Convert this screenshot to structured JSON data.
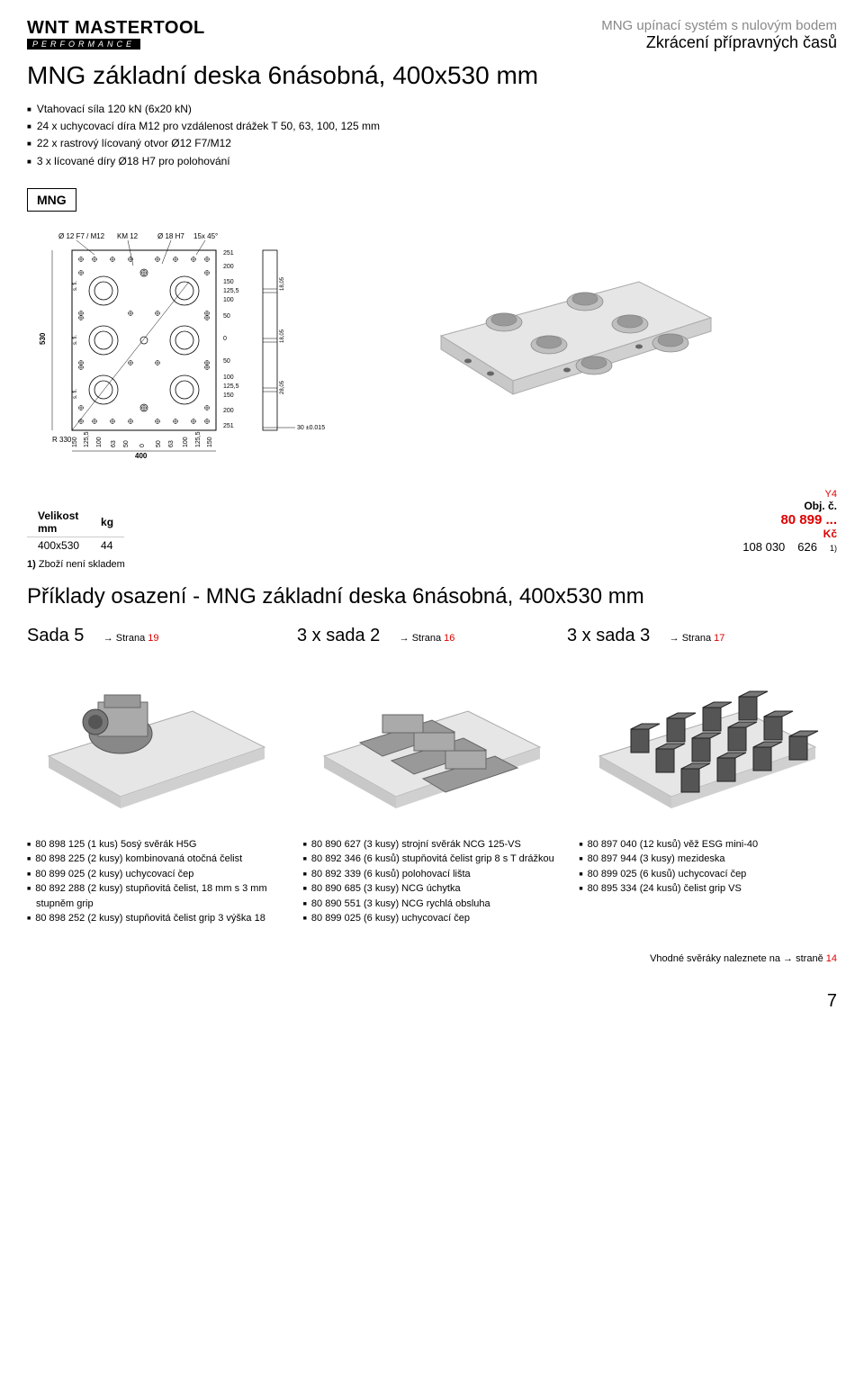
{
  "logo": {
    "main": "WNT MASTERTOOL",
    "sub": "PERFORMANCE"
  },
  "header_right": {
    "line1": "MNG upínací systém s nulovým bodem",
    "line2": "Zkrácení přípravných časů"
  },
  "title": "MNG základní deska 6násobná, 400x530 mm",
  "features": [
    "Vtahovací síla 120 kN (6x20 kN)",
    "24 x uchycovací díra M12 pro vzdálenost drážek T 50, 63, 100, 125 mm",
    "22 x rastrový lícovaný otvor Ø12 F7/M12",
    "3 x lícované díry Ø18 H7 pro polohování"
  ],
  "mng_label": "MNG",
  "tech_diagram": {
    "labels_top": [
      "Ø 12 F7 / M12",
      "KM 12",
      "Ø 18 H7",
      "15x 45°"
    ],
    "y_dims": [
      "251",
      "200",
      "150",
      "125,5",
      "100",
      "50",
      "0",
      "50",
      "100",
      "125,5",
      "150",
      "200",
      "251"
    ],
    "x_dims": [
      "150",
      "125,5",
      "100",
      "63",
      "50",
      "0",
      "50",
      "63",
      "100",
      "125,5",
      "150"
    ],
    "side_dim": "530",
    "bottom_dim": "400",
    "radius": "R 330",
    "side_notes": [
      "18,05",
      "18,05",
      "28,05"
    ],
    "tolerance": "30 ±0.015",
    "small_r": [
      "s. fi.",
      "s. fi.",
      "s. fi."
    ]
  },
  "table": {
    "col1_header": "Velikost\nmm",
    "col2_header": "kg",
    "row": {
      "size": "400x530",
      "kg": "44"
    },
    "y4": "Y4",
    "obj_label": "Obj. č.",
    "code": "80 899 ...",
    "kc_label": "Kč",
    "price": "108 030",
    "qty": "626",
    "sup": "1)"
  },
  "footnote": {
    "num": "1)",
    "text": "Zboží není skladem"
  },
  "section2_title": "Příklady osazení - MNG základní deska 6násobná, 400x530 mm",
  "sets": [
    {
      "title": "Sada 5",
      "arrow": "→ Strana ",
      "page": "19"
    },
    {
      "title": "3 x sada 2",
      "arrow": "→ Strana ",
      "page": "16"
    },
    {
      "title": "3 x sada 3",
      "arrow": "→ Strana ",
      "page": "17"
    }
  ],
  "columns": [
    [
      "80 898 125 (1 kus) 5osý svěrák H5G",
      "80 898 225 (2 kusy) kombinovaná otočná čelist",
      "80 899 025 (2 kusy) uchycovací čep",
      "80 892 288 (2 kusy) stupňovitá čelist, 18 mm s 3 mm stupněm grip",
      "80 898 252 (2 kusy) stupňovitá čelist grip 3 výška 18"
    ],
    [
      "80 890 627 (3 kusy) strojní svěrák NCG 125-VS",
      "80 892 346 (6 kusů) stupňovitá čelist grip 8 s T drážkou",
      "80 892 339 (6 kusů) polohovací lišta",
      "80 890 685 (3 kusy) NCG úchytka",
      "80 890 551 (3 kusy) NCG rychlá obsluha",
      "80 899 025 (6 kusy) uchycovací čep"
    ],
    [
      "80 897 040 (12 kusů) věž ESG mini-40",
      "80 897 944 (3 kusy) mezideska",
      "80 899 025 (6 kusů) uchycovací čep",
      "80 895 334 (24 kusů) čelist grip VS"
    ]
  ],
  "bottom_note": {
    "text": "Vhodné svěráky naleznete na → straně ",
    "page": "14"
  },
  "page_number": "7",
  "colors": {
    "red": "#d00",
    "gray": "#888",
    "plate": "#e6e6e6",
    "plate_dark": "#c8c8c8",
    "metal": "#b8b8b8",
    "metal_dark": "#888"
  }
}
